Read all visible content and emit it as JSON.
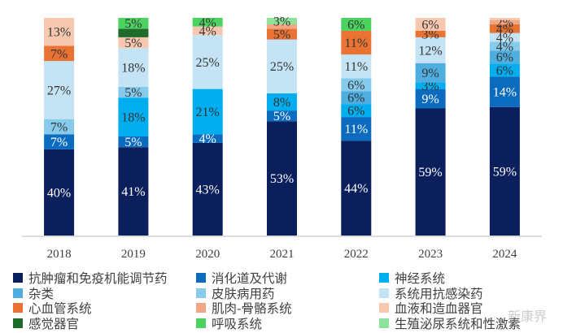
{
  "chart_data": {
    "type": "bar",
    "stacked": true,
    "title": "",
    "xlabel": "",
    "ylabel": "",
    "ylim": [
      0,
      100
    ],
    "grid": false,
    "legend_position": "bottom",
    "categories": [
      "2018",
      "2019",
      "2020",
      "2021",
      "2022",
      "2023",
      "2024"
    ],
    "series": [
      {
        "name": "抗肿瘤和免疫机能调节药",
        "color": "#0A1F5C",
        "label_color": "#ffffff",
        "values": [
          40,
          41,
          43,
          53,
          44,
          59,
          59
        ]
      },
      {
        "name": "消化道及代谢",
        "color": "#0B6BBE",
        "label_color": "#ffffff",
        "values": [
          7,
          5,
          4,
          5,
          11,
          9,
          14
        ]
      },
      {
        "name": "神经系统",
        "color": "#00ADEF",
        "label_color": "#333333",
        "values": [
          0,
          18,
          21,
          8,
          6,
          3,
          6
        ]
      },
      {
        "name": "杂类",
        "color": "#4EAEE0",
        "label_color": "#333333",
        "values": [
          0,
          0,
          0,
          0,
          6,
          9,
          6
        ]
      },
      {
        "name": "皮肤病用药",
        "color": "#86CBEC",
        "label_color": "#333333",
        "values": [
          7,
          5,
          0,
          0,
          6,
          0,
          4
        ]
      },
      {
        "name": "系统用抗感染药",
        "color": "#C4E4F5",
        "label_color": "#333333",
        "values": [
          27,
          18,
          25,
          25,
          11,
          12,
          4
        ]
      },
      {
        "name": "心血管系统",
        "color": "#EA7334",
        "label_color": "#333333",
        "values": [
          7,
          0,
          0,
          5,
          11,
          3,
          4
        ]
      },
      {
        "name": "肌肉-骨骼系统",
        "color": "#F2A684",
        "label_color": "#333333",
        "values": [
          0,
          0,
          0,
          2,
          0,
          0,
          2
        ]
      },
      {
        "name": "血液和造血器官",
        "color": "#F7C7AF",
        "label_color": "#333333",
        "values": [
          13,
          5,
          4,
          0,
          0,
          6,
          1
        ]
      },
      {
        "name": "感觉器官",
        "color": "#1E6B2A",
        "label_color": "#333333",
        "values": [
          0,
          4,
          0,
          0,
          0,
          0,
          0
        ]
      },
      {
        "name": "呼吸系统",
        "color": "#4CD25E",
        "label_color": "#333333",
        "values": [
          0,
          5,
          4,
          0,
          6,
          0,
          0
        ]
      },
      {
        "name": "生殖泌尿系统和性激素",
        "color": "#8EE29A",
        "label_color": "#333333",
        "values": [
          0,
          0,
          0,
          3,
          0,
          0,
          0
        ]
      }
    ],
    "data_labels": [
      [
        "40%",
        "7%",
        "",
        "",
        "7%",
        "27%",
        "7%",
        "",
        "13%",
        "",
        "",
        ""
      ],
      [
        "41%",
        "5%",
        "18%",
        "",
        "5%",
        "18%",
        "",
        "",
        "5%",
        "",
        "5%",
        ""
      ],
      [
        "43%",
        "4%",
        "21%",
        "",
        "",
        "25%",
        "",
        "",
        "4%",
        "",
        "4%",
        ""
      ],
      [
        "53%",
        "5%",
        "8%",
        "",
        "",
        "25%",
        "5%",
        "",
        "",
        "",
        "",
        "3%"
      ],
      [
        "44%",
        "11%",
        "6%",
        "6%",
        "6%",
        "11%",
        "11%",
        "",
        "",
        "",
        "6%",
        ""
      ],
      [
        "59%",
        "9%",
        "3%",
        "9%",
        "",
        "12%",
        "3%",
        "",
        "6%",
        "",
        "",
        ""
      ],
      [
        "59%",
        "14%",
        "6%",
        "6%",
        "4%",
        "4%",
        "4%",
        "2%",
        "",
        "",
        "",
        ""
      ]
    ]
  },
  "legend": {
    "rows": [
      [
        0,
        1,
        2
      ],
      [
        3,
        4,
        5
      ],
      [
        6,
        7,
        8
      ],
      [
        9,
        10,
        11
      ]
    ]
  },
  "watermark": "新康界"
}
